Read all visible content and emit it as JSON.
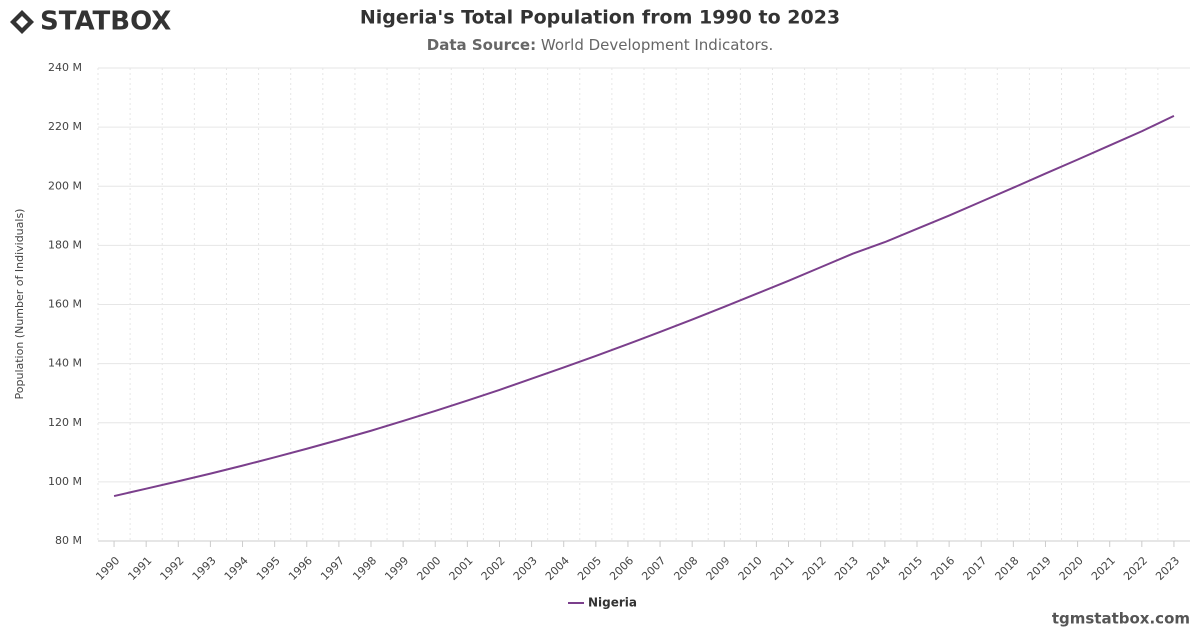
{
  "brand": "STATBOX",
  "footer": "tgmstatbox.com",
  "chart_data": {
    "type": "line",
    "title": "Nigeria's Total Population from 1990 to 2023",
    "subtitle_label": "Data Source:",
    "subtitle": "World Development Indicators.",
    "y_label": "Population (Number of Individuals)",
    "categories": [
      "1990",
      "1991",
      "1992",
      "1993",
      "1994",
      "1995",
      "1996",
      "1997",
      "1998",
      "1999",
      "2000",
      "2001",
      "2002",
      "2003",
      "2004",
      "2005",
      "2006",
      "2007",
      "2008",
      "2009",
      "2010",
      "2011",
      "2012",
      "2013",
      "2014",
      "2015",
      "2016",
      "2017",
      "2018",
      "2019",
      "2020",
      "2021",
      "2022",
      "2023"
    ],
    "series": [
      {
        "name": "Nigeria",
        "color": "#7b3f8c",
        "values": [
          95.2,
          97.7,
          100.2,
          102.8,
          105.5,
          108.3,
          111.2,
          114.2,
          117.3,
          120.6,
          124.0,
          127.5,
          131.1,
          134.9,
          138.7,
          142.6,
          146.6,
          150.7,
          154.9,
          159.2,
          163.6,
          168.0,
          172.6,
          177.2,
          181.1,
          185.6,
          190.1,
          194.8,
          199.5,
          204.3,
          209.0,
          213.8,
          218.6,
          223.8
        ]
      }
    ],
    "ylim": [
      80,
      240
    ],
    "yticks": [
      {
        "value": 80,
        "label": "80 M"
      },
      {
        "value": 100,
        "label": "100 M"
      },
      {
        "value": 120,
        "label": "120 M"
      },
      {
        "value": 140,
        "label": "140 M"
      },
      {
        "value": 160,
        "label": "160 M"
      },
      {
        "value": 180,
        "label": "180 M"
      },
      {
        "value": 200,
        "label": "200 M"
      },
      {
        "value": 220,
        "label": "220 M"
      },
      {
        "value": 240,
        "label": "240 M"
      }
    ],
    "grid": true
  }
}
